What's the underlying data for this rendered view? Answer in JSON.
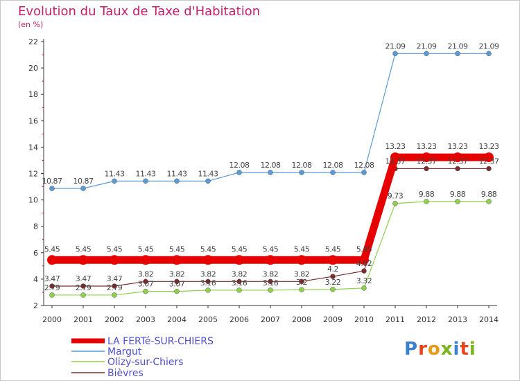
{
  "header": {
    "title": "Evolution du Taux de Taxe d'Habitation",
    "subtitle": "(en %)"
  },
  "logo": {
    "text": "Proxiti",
    "letter_colors": [
      "#3b7fd1",
      "#e6451e",
      "#e89b12",
      "#7ab51d",
      "#3b7fd1",
      "#e6451e",
      "#7ab51d"
    ]
  },
  "chart_data": {
    "type": "line",
    "title": "Evolution du Taux de Taxe d'Habitation",
    "subtitle": "(en %)",
    "x": [
      "2000",
      "2001",
      "2002",
      "2003",
      "2004",
      "2005",
      "2006",
      "2007",
      "2008",
      "2009",
      "2010",
      "2011",
      "2012",
      "2013",
      "2014"
    ],
    "ylim": [
      2,
      22
    ],
    "yticks": [
      "2",
      "4",
      "6",
      "8",
      "10",
      "12",
      "14",
      "16",
      "18",
      "20",
      "22"
    ],
    "grid": false,
    "legend_position": "bottom-left",
    "series": [
      {
        "name": "LA FERTé-SUR-CHIERS",
        "color": "#e60000",
        "values": [
          5.45,
          5.45,
          5.45,
          5.45,
          5.45,
          5.45,
          5.45,
          5.45,
          5.45,
          5.45,
          5.45,
          13.23,
          13.23,
          13.23,
          13.23
        ],
        "labels": [
          "5.45",
          "5.45",
          "5.45",
          "5.45",
          "5.45",
          "5.45",
          "5.45",
          "5.45",
          "5.45",
          "5.45",
          "5.45",
          "13.23",
          "13.23",
          "13.23",
          "13.23"
        ]
      },
      {
        "name": "Margut",
        "color": "#5b9bd5",
        "values": [
          10.87,
          10.87,
          11.43,
          11.43,
          11.43,
          11.43,
          12.08,
          12.08,
          12.08,
          12.08,
          12.08,
          21.09,
          21.09,
          21.09,
          21.09
        ],
        "labels": [
          "10.87",
          "10.87",
          "11.43",
          "11.43",
          "11.43",
          "11.43",
          "12.08",
          "12.08",
          "12.08",
          "12.08",
          "12.08",
          "21.09",
          "21.09",
          "21.09",
          "21.09"
        ]
      },
      {
        "name": "Olizy-sur-Chiers",
        "color": "#8fd14f",
        "values": [
          2.79,
          2.79,
          2.79,
          3.07,
          3.07,
          3.16,
          3.16,
          3.16,
          3.2,
          3.22,
          3.32,
          9.73,
          9.88,
          9.88,
          9.88
        ],
        "labels": [
          "2.79",
          "2.79",
          "2.79",
          "3.07",
          "3.07",
          "3.16",
          "3.16",
          "3.16",
          "3.2",
          "3.22",
          "3.32",
          "9.73",
          "9.88",
          "9.88",
          "9.88"
        ]
      },
      {
        "name": "Bièvres",
        "color": "#7b2c2c",
        "values": [
          3.47,
          3.47,
          3.47,
          3.82,
          3.82,
          3.82,
          3.82,
          3.82,
          3.82,
          4.2,
          4.62,
          12.37,
          12.37,
          12.37,
          12.37
        ],
        "labels": [
          "3.47",
          "3.47",
          "3.47",
          "3.82",
          "3.82",
          "3.82",
          "3.82",
          "3.82",
          "3.82",
          "4.2",
          "4.62",
          "12.37",
          "12.37",
          "12.37",
          "12.37"
        ]
      }
    ]
  }
}
